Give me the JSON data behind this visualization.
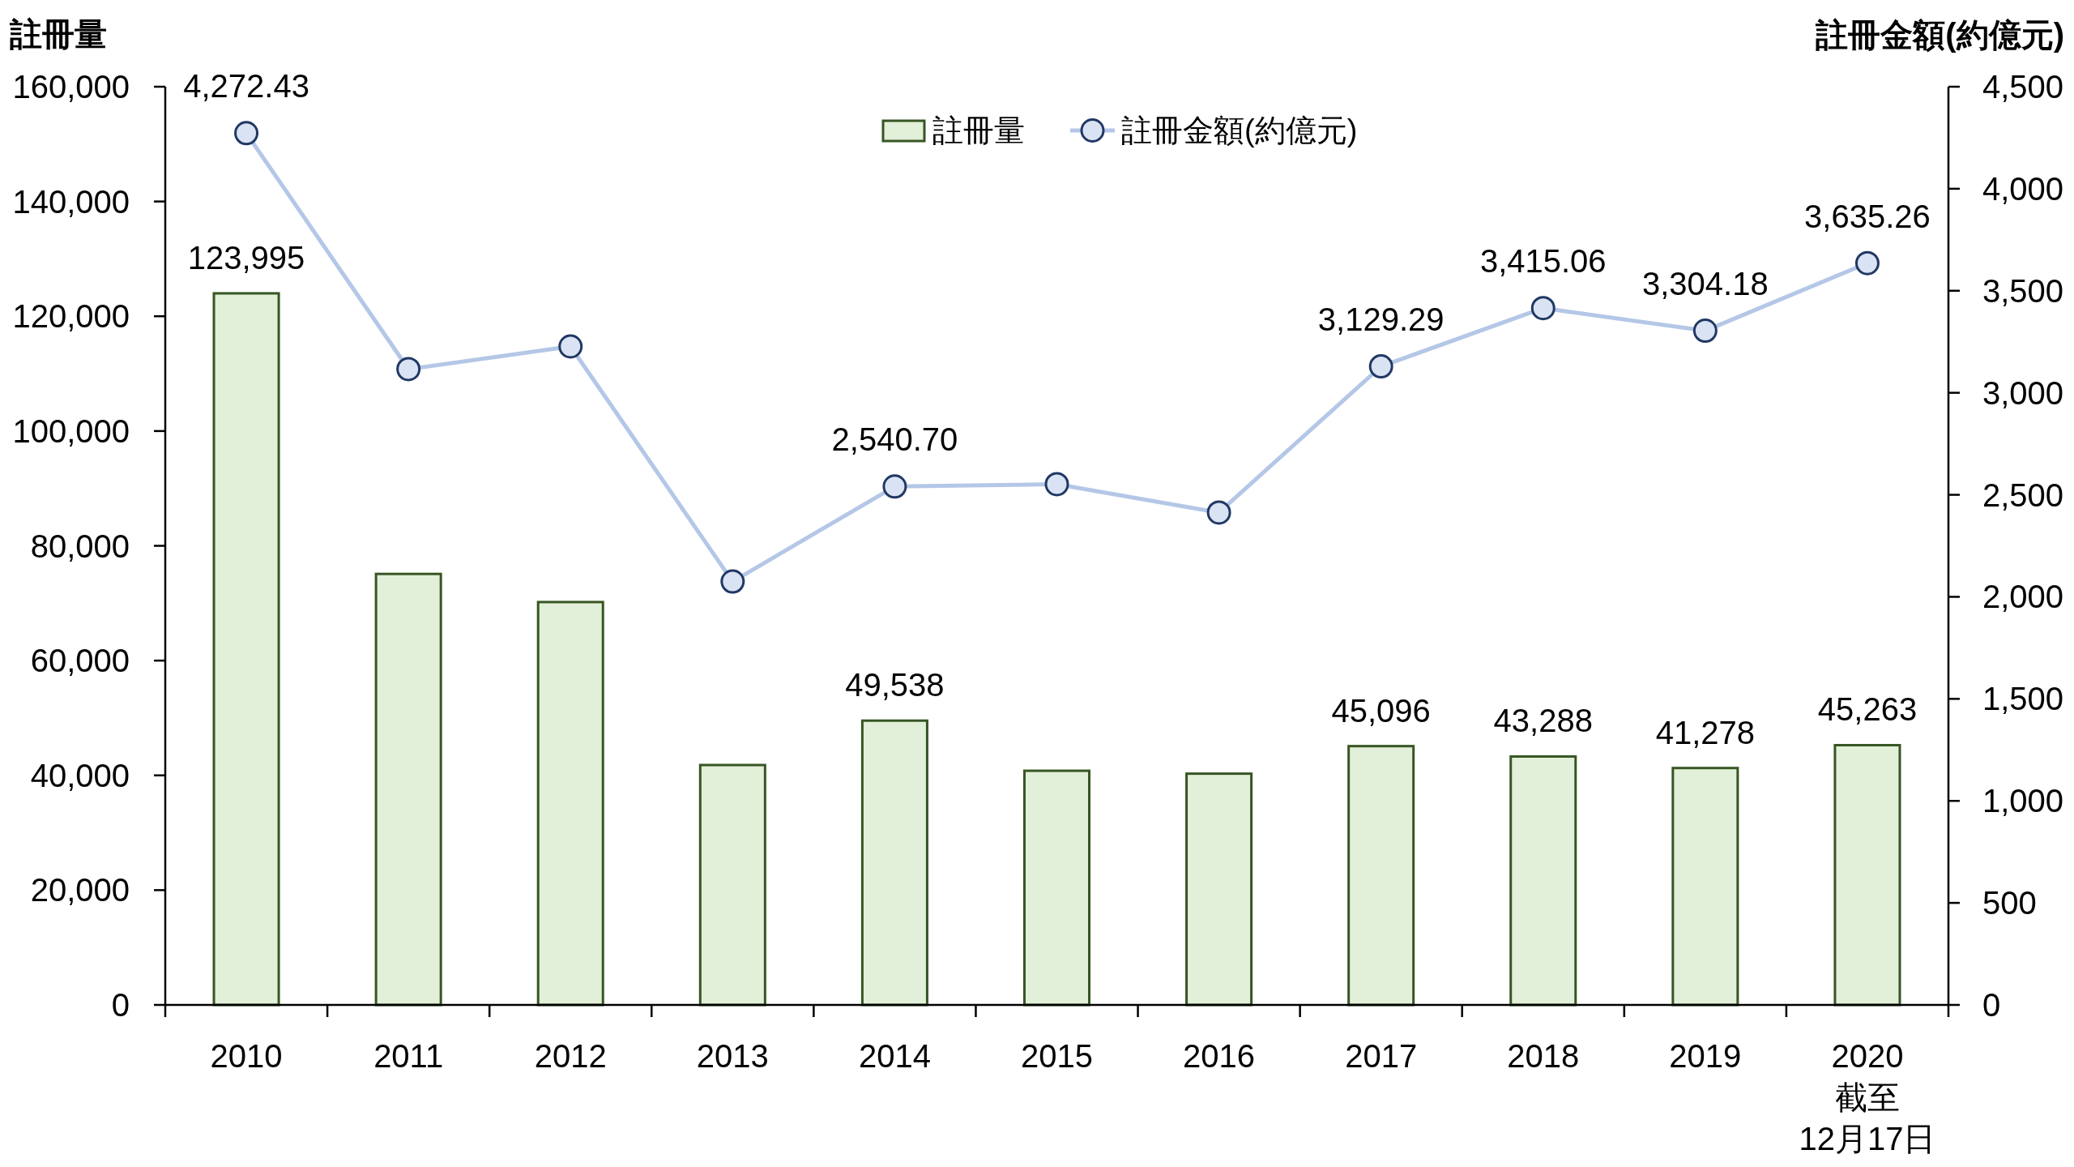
{
  "chart_data": {
    "type": "bar",
    "categories": [
      "2010",
      "2011",
      "2012",
      "2013",
      "2014",
      "2015",
      "2016",
      "2017",
      "2018",
      "2019",
      "2020\n截至\n12月17日"
    ],
    "ylabel": "註冊量",
    "y2label": "註冊金額(約億元)",
    "ylim": [
      0,
      160000
    ],
    "yticks": [
      {
        "value": 0,
        "label": "0"
      },
      {
        "value": 20000,
        "label": "20,000"
      },
      {
        "value": 40000,
        "label": "40,000"
      },
      {
        "value": 60000,
        "label": "60,000"
      },
      {
        "value": 80000,
        "label": "80,000"
      },
      {
        "value": 100000,
        "label": "100,000"
      },
      {
        "value": 120000,
        "label": "120,000"
      },
      {
        "value": 140000,
        "label": "140,000"
      },
      {
        "value": 160000,
        "label": "160,000"
      }
    ],
    "y2lim": [
      0,
      4500
    ],
    "y2ticks": [
      {
        "value": 0,
        "label": "0"
      },
      {
        "value": 500,
        "label": "500"
      },
      {
        "value": 1000,
        "label": "1,000"
      },
      {
        "value": 1500,
        "label": "1,500"
      },
      {
        "value": 2000,
        "label": "2,000"
      },
      {
        "value": 2500,
        "label": "2,500"
      },
      {
        "value": 3000,
        "label": "3,000"
      },
      {
        "value": 3500,
        "label": "3,500"
      },
      {
        "value": 4000,
        "label": "4,000"
      },
      {
        "value": 4500,
        "label": "4,500"
      }
    ],
    "legend": "top",
    "marker": "circle",
    "series": [
      {
        "name": "註冊量",
        "color": "#e2efd9",
        "values": [
          123995,
          75100,
          70200,
          41800,
          49538,
          40800,
          40300,
          45096,
          43288,
          41278,
          45263
        ],
        "value_labels": [
          "123,995",
          null,
          null,
          null,
          "49,538",
          null,
          null,
          "45,096",
          "43,288",
          "41,278",
          "45,263"
        ]
      },
      {
        "name": "註冊金額(約億元)",
        "type": "line",
        "axis": "y2",
        "color": "#b4c7e7",
        "values": [
          4272.43,
          3116,
          3227,
          2075,
          2540.7,
          2552,
          2413,
          3129.29,
          3415.06,
          3304.18,
          3635.26
        ],
        "value_labels": [
          "4,272.43",
          null,
          null,
          null,
          "2,540.70",
          null,
          null,
          "3,129.29",
          "3,415.06",
          "3,304.18",
          "3,635.26"
        ]
      }
    ]
  }
}
